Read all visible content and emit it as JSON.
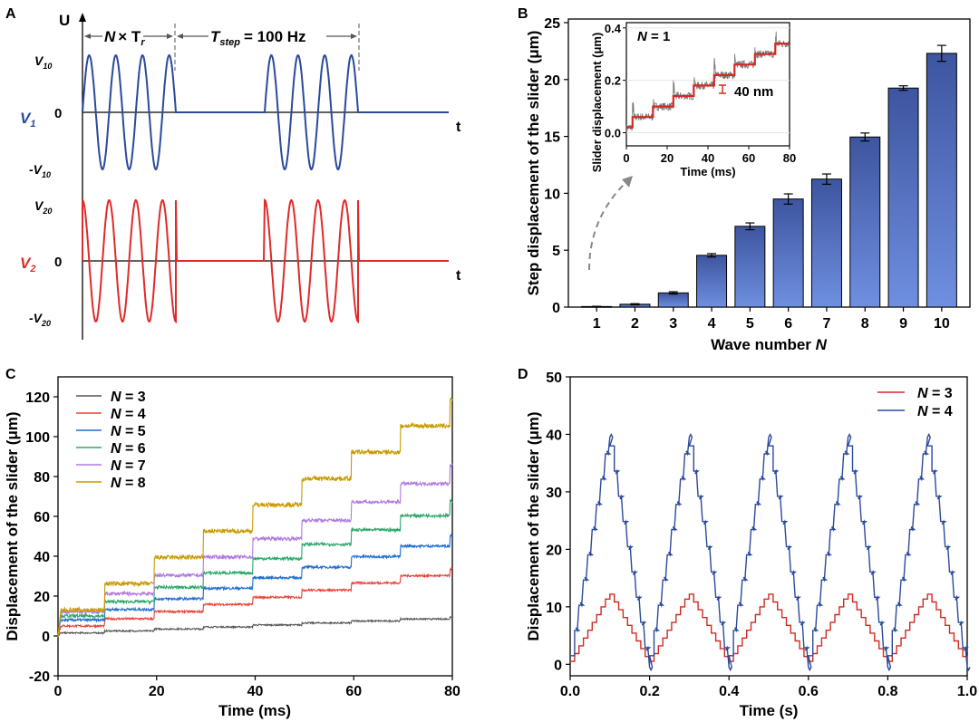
{
  "chart_data": [
    {
      "panel": "A",
      "type": "line",
      "title": "",
      "axis_label_y": "U",
      "axis_label_x": "t",
      "annotation_N": "N",
      "annotation_x": "× T",
      "annotation_r": "r",
      "annotation_T": "T",
      "annotation_step": "step",
      "annotation_freq": "= 100 Hz",
      "series": [
        {
          "name_main": "V",
          "name_sub": "1",
          "color": "#2b4a9c",
          "tick_pos_main": "V",
          "tick_pos_sub": "10",
          "tick_zero": "0",
          "tick_neg_main": "-V",
          "tick_neg_sub": "10",
          "waveform": "sine",
          "cycles_per_burst": 3.5,
          "bursts": 2
        },
        {
          "name_main": "V",
          "name_sub": "2",
          "color": "#e02a2a",
          "tick_pos_main": "V",
          "tick_pos_sub": "20",
          "tick_zero": "0",
          "tick_neg_main": "-V",
          "tick_neg_sub": "20",
          "waveform": "cosine",
          "cycles_per_burst": 3.5,
          "bursts": 2
        }
      ]
    },
    {
      "panel": "B",
      "type": "bar",
      "categories": [
        "1",
        "2",
        "3",
        "4",
        "5",
        "6",
        "7",
        "8",
        "9",
        "10"
      ],
      "values": [
        0.05,
        0.25,
        1.25,
        4.55,
        7.1,
        9.5,
        11.25,
        14.95,
        19.25,
        22.3
      ],
      "errors": [
        0.02,
        0.05,
        0.1,
        0.15,
        0.3,
        0.45,
        0.45,
        0.35,
        0.2,
        0.7
      ],
      "xlabel_main": "Wave number ",
      "xlabel_italic": "N",
      "ylabel": "Step displacement of the slider (μm)",
      "ylim": [
        0,
        25
      ],
      "yticks": [
        "0",
        "5",
        "10",
        "15",
        "20",
        "25"
      ],
      "bar_color_top": "#3e55a0",
      "bar_color_bottom": "#6f8fe0",
      "inset": {
        "label_italic": "N",
        "label_rest": " = 1",
        "xlabel": "Time (ms)",
        "ylabel": "Slider displacement (μm)",
        "xticks": [
          "0",
          "20",
          "40",
          "60",
          "80"
        ],
        "yticks": [
          "0.0",
          "0.2",
          "0.4"
        ],
        "xlim": [
          0,
          80
        ],
        "ylim": [
          -0.05,
          0.42
        ],
        "annotation": "40 nm",
        "step_values": [
          0.02,
          0.06,
          0.1,
          0.14,
          0.18,
          0.22,
          0.26,
          0.3,
          0.34
        ]
      }
    },
    {
      "panel": "C",
      "type": "line",
      "xlabel": "Time (ms)",
      "ylabel": "Displacement of the slider (μm)",
      "xlim": [
        0,
        80
      ],
      "ylim": [
        -20,
        130
      ],
      "xticks": [
        "0",
        "20",
        "40",
        "60",
        "80"
      ],
      "yticks": [
        "-20",
        "0",
        "20",
        "40",
        "60",
        "80",
        "100",
        "120"
      ],
      "series": [
        {
          "n_label": "N",
          "eq": " = 3",
          "color": "#555555",
          "step": 1.0,
          "base": 1.5
        },
        {
          "n_label": "N",
          "eq": " = 4",
          "color": "#e8433a",
          "step": 3.6,
          "base": 5
        },
        {
          "n_label": "N",
          "eq": " = 5",
          "color": "#1f6fd1",
          "step": 5.3,
          "base": 8
        },
        {
          "n_label": "N",
          "eq": " = 6",
          "color": "#2ea86a",
          "step": 7.2,
          "base": 10
        },
        {
          "n_label": "N",
          "eq": " = 7",
          "color": "#b07ae0",
          "step": 9.2,
          "base": 12
        },
        {
          "n_label": "N",
          "eq": " = 8",
          "color": "#c89a00",
          "step": 13.2,
          "base": 13
        }
      ]
    },
    {
      "panel": "D",
      "type": "line",
      "xlabel": "Time (s)",
      "ylabel": "Displacement of the slider (μm)",
      "xlim": [
        0,
        1.0
      ],
      "ylim": [
        -2,
        50
      ],
      "xticks": [
        "0.0",
        "0.2",
        "0.4",
        "0.6",
        "0.8",
        "1.0"
      ],
      "yticks": [
        "0",
        "10",
        "20",
        "30",
        "40",
        "50"
      ],
      "series": [
        {
          "n_label": "N",
          "eq": " = 3",
          "color": "#d32a22",
          "peak": 12.2,
          "steps": 9
        },
        {
          "n_label": "N",
          "eq": " = 4",
          "color": "#2b4a9c",
          "peak": 39.5,
          "steps": 9
        }
      ]
    }
  ],
  "panel_labels": {
    "a": "A",
    "b": "B",
    "c": "C",
    "d": "D"
  }
}
